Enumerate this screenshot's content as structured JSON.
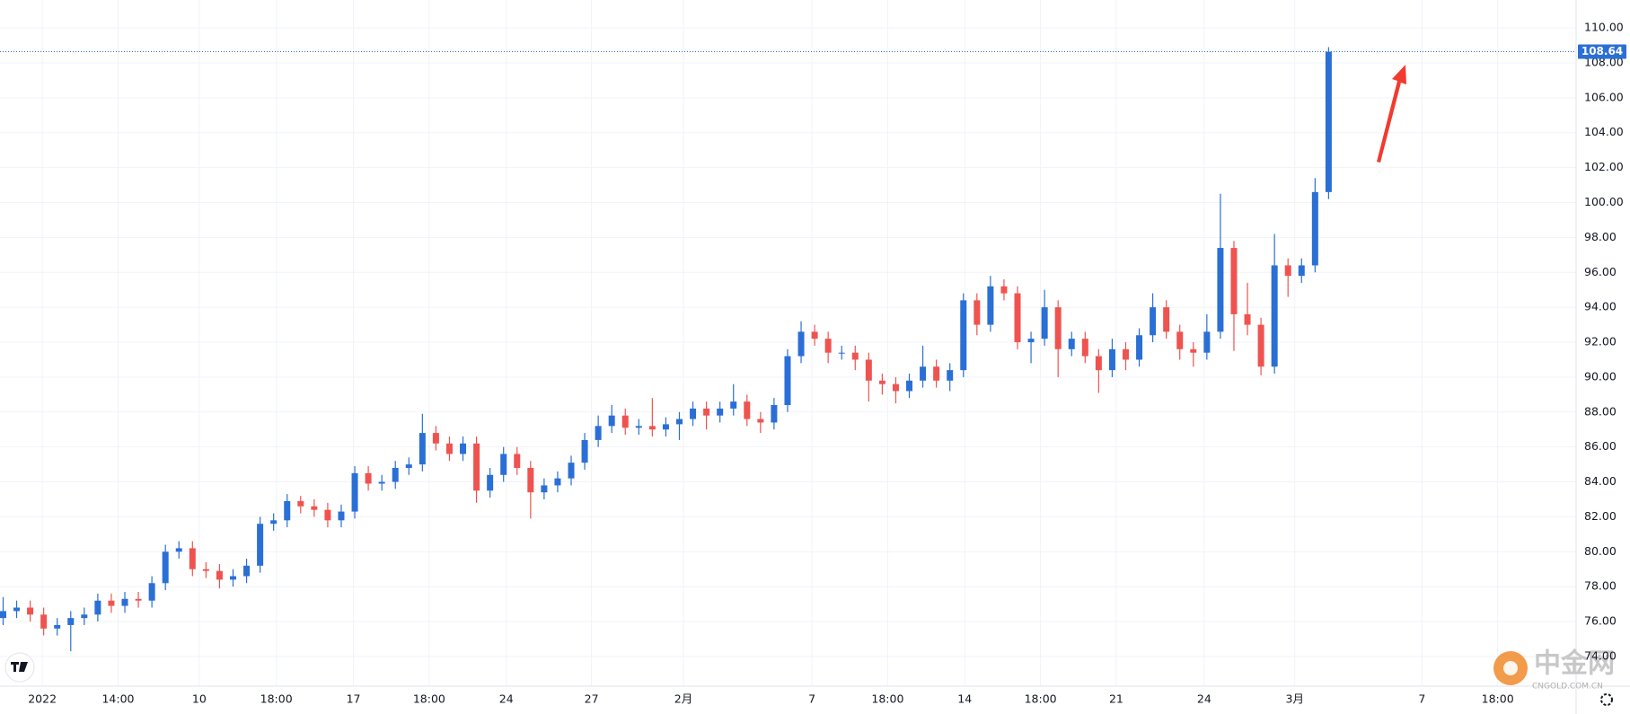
{
  "chart_data": {
    "type": "candlestick",
    "up_color": "#2a6fd6",
    "down_color": "#ef5350",
    "grid": true,
    "xlim": [
      -0.23,
      116.3
    ],
    "xticks": [
      {
        "value": 2.9,
        "label": "2022"
      },
      {
        "value": 8.5,
        "label": "14:00"
      },
      {
        "value": 14.5,
        "label": "10"
      },
      {
        "value": 20.2,
        "label": "18:00"
      },
      {
        "value": 25.9,
        "label": "17"
      },
      {
        "value": 31.5,
        "label": "18:00"
      },
      {
        "value": 37.2,
        "label": "24"
      },
      {
        "value": 43.5,
        "label": "27"
      },
      {
        "value": 50.3,
        "label": "2月"
      },
      {
        "value": 59.8,
        "label": "7"
      },
      {
        "value": 65.4,
        "label": "18:00"
      },
      {
        "value": 71.1,
        "label": "14"
      },
      {
        "value": 76.7,
        "label": "18:00"
      },
      {
        "value": 82.3,
        "label": "21"
      },
      {
        "value": 88.8,
        "label": "24"
      },
      {
        "value": 95.5,
        "label": "3月"
      },
      {
        "value": 104.9,
        "label": "7"
      },
      {
        "value": 110.5,
        "label": "18:00"
      }
    ],
    "ylim": [
      72.3,
      111.6
    ],
    "yticks": [
      {
        "value": 74,
        "label": "74.00"
      },
      {
        "value": 76,
        "label": "76.00"
      },
      {
        "value": 78,
        "label": "78.00"
      },
      {
        "value": 80,
        "label": "80.00"
      },
      {
        "value": 82,
        "label": "82.00"
      },
      {
        "value": 84,
        "label": "84.00"
      },
      {
        "value": 86,
        "label": "86.00"
      },
      {
        "value": 88,
        "label": "88.00"
      },
      {
        "value": 90,
        "label": "90.00"
      },
      {
        "value": 92,
        "label": "92.00"
      },
      {
        "value": 94,
        "label": "94.00"
      },
      {
        "value": 96,
        "label": "96.00"
      },
      {
        "value": 98,
        "label": "98.00"
      },
      {
        "value": 100,
        "label": "100.00"
      },
      {
        "value": 102,
        "label": "102.00"
      },
      {
        "value": 104,
        "label": "104.00"
      },
      {
        "value": 106,
        "label": "106.00"
      },
      {
        "value": 108,
        "label": "108.00"
      },
      {
        "value": 110,
        "label": "110.00"
      }
    ],
    "open": [
      76.2,
      76.6,
      76.8,
      76.4,
      75.6,
      75.8,
      76.2,
      76.4,
      77.2,
      76.9,
      77.3,
      77.2,
      78.2,
      80.0,
      80.2,
      79.0,
      78.9,
      78.4,
      78.6,
      79.2,
      81.6,
      81.8,
      82.9,
      82.6,
      82.4,
      81.8,
      82.3,
      84.5,
      83.9,
      84.0,
      84.8,
      85.0,
      86.8,
      86.2,
      85.6,
      86.2,
      83.5,
      84.4,
      85.6,
      84.8,
      83.4,
      83.8,
      84.2,
      85.1,
      86.4,
      87.2,
      87.8,
      87.1,
      87.2,
      87.0,
      87.3,
      87.6,
      88.2,
      87.8,
      88.2,
      88.6,
      87.6,
      87.4,
      88.4,
      91.2,
      92.6,
      92.2,
      91.4,
      91.4,
      91.0,
      89.8,
      89.6,
      89.2,
      89.8,
      90.6,
      89.8,
      90.4,
      94.4,
      93.0,
      95.2,
      94.8,
      92.0,
      92.2,
      94.0,
      91.6,
      92.2,
      91.2,
      90.4,
      91.6,
      91.0,
      92.4,
      94.0,
      92.6,
      91.6,
      91.4,
      92.6,
      97.4,
      93.6,
      93.0,
      90.6,
      96.4,
      95.8,
      96.4,
      100.6
    ],
    "high": [
      77.4,
      77.2,
      77.2,
      76.8,
      76.2,
      76.6,
      76.8,
      77.6,
      77.6,
      77.7,
      77.7,
      78.6,
      80.4,
      80.6,
      80.6,
      79.4,
      79.3,
      79.0,
      79.6,
      82.0,
      82.2,
      83.3,
      83.2,
      83.0,
      82.8,
      82.7,
      84.9,
      84.9,
      84.4,
      85.2,
      85.4,
      87.9,
      87.2,
      86.6,
      86.6,
      86.6,
      84.8,
      86.0,
      86.0,
      85.2,
      84.2,
      84.6,
      85.5,
      86.8,
      87.8,
      88.4,
      88.2,
      87.6,
      88.8,
      87.7,
      88.0,
      88.6,
      88.6,
      88.6,
      89.6,
      89.0,
      88.0,
      88.8,
      91.6,
      93.2,
      93.0,
      92.6,
      91.8,
      91.8,
      91.4,
      90.2,
      90.0,
      90.2,
      91.8,
      91.0,
      90.8,
      94.8,
      94.8,
      95.8,
      95.6,
      95.2,
      92.6,
      95.0,
      94.4,
      92.6,
      92.6,
      91.6,
      92.2,
      92.0,
      92.8,
      94.8,
      94.4,
      93.0,
      92.0,
      93.6,
      100.5,
      97.8,
      95.4,
      93.4,
      98.2,
      96.8,
      96.8,
      101.4,
      108.9
    ],
    "low": [
      75.8,
      76.2,
      76.0,
      75.2,
      75.2,
      74.3,
      75.8,
      76.0,
      76.5,
      76.5,
      76.8,
      76.8,
      77.8,
      79.6,
      78.6,
      78.5,
      77.9,
      78.0,
      78.2,
      78.8,
      81.2,
      81.4,
      82.2,
      82.0,
      81.4,
      81.4,
      81.9,
      83.5,
      83.5,
      83.6,
      84.4,
      84.6,
      85.8,
      85.2,
      85.2,
      82.8,
      83.1,
      84.0,
      84.4,
      81.9,
      83.0,
      83.4,
      83.8,
      84.7,
      86.0,
      86.8,
      86.7,
      86.7,
      86.6,
      86.6,
      86.4,
      87.2,
      87.0,
      87.4,
      87.8,
      87.2,
      86.8,
      87.0,
      88.0,
      90.8,
      91.8,
      90.8,
      91.0,
      90.4,
      88.6,
      89.0,
      88.5,
      88.8,
      89.4,
      89.4,
      89.2,
      90.0,
      92.4,
      92.6,
      94.4,
      91.6,
      90.8,
      91.8,
      90.0,
      91.2,
      90.8,
      89.1,
      90.0,
      90.4,
      90.6,
      92.0,
      92.2,
      91.0,
      90.6,
      91.0,
      92.2,
      91.5,
      92.4,
      90.1,
      90.2,
      94.6,
      95.4,
      96.0,
      100.2
    ],
    "close": [
      76.6,
      76.8,
      76.4,
      75.6,
      75.8,
      76.2,
      76.4,
      77.2,
      76.9,
      77.3,
      77.2,
      78.2,
      80.0,
      80.2,
      79.0,
      78.9,
      78.4,
      78.6,
      79.2,
      81.6,
      81.8,
      82.9,
      82.6,
      82.4,
      81.8,
      82.3,
      84.5,
      83.9,
      84.0,
      84.8,
      85.0,
      86.8,
      86.2,
      85.6,
      86.2,
      83.5,
      84.4,
      85.6,
      84.8,
      83.4,
      83.8,
      84.2,
      85.1,
      86.4,
      87.2,
      87.8,
      87.1,
      87.2,
      87.0,
      87.3,
      87.6,
      88.2,
      87.8,
      88.2,
      88.6,
      87.6,
      87.4,
      88.4,
      91.2,
      92.6,
      92.2,
      91.4,
      91.4,
      91.0,
      89.8,
      89.6,
      89.2,
      89.8,
      90.6,
      89.8,
      90.4,
      94.4,
      93.0,
      95.2,
      94.8,
      92.0,
      92.2,
      94.0,
      91.6,
      92.2,
      91.2,
      90.4,
      91.6,
      91.0,
      92.4,
      94.0,
      92.6,
      91.6,
      91.4,
      92.6,
      97.4,
      93.6,
      93.0,
      90.6,
      96.4,
      95.8,
      96.4,
      100.6,
      108.64
    ]
  },
  "watermark": {
    "name": "中金网",
    "url": "CNGOLD.COM.CN"
  }
}
